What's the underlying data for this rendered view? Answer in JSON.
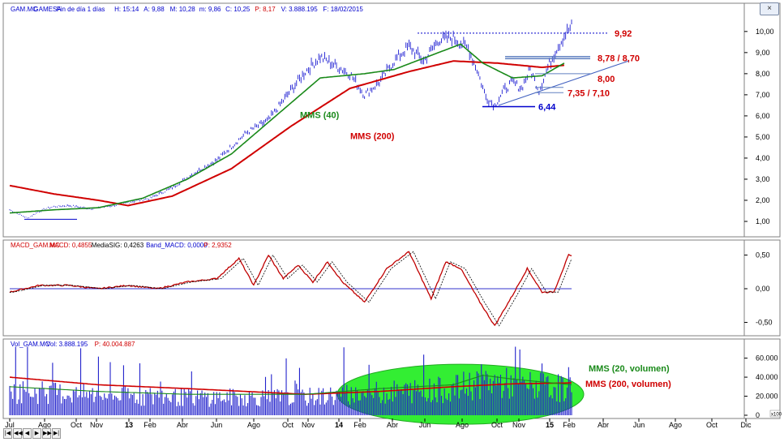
{
  "window": {
    "close_label": "×"
  },
  "navigation": [
    "|◀",
    "◀◀",
    "◀",
    "▶",
    "▶▶",
    "▶|"
  ],
  "panels": {
    "price": {
      "header": [
        "GAM.MC",
        "GAMESA",
        "Fin de día 1 días",
        "H: 15:14",
        "A: 9,88",
        "M: 10,28",
        "m: 9,86",
        "C: 10,25",
        "P: 8,17",
        "V: 3.888.195",
        "F: 18/02/2015"
      ],
      "header_colors": [
        "#0000cc",
        "#0000cc",
        "#0000cc",
        "#0000cc",
        "#0000cc",
        "#0000cc",
        "#0000cc",
        "#0000cc",
        "#d00000",
        "#0000cc",
        "#0000cc"
      ],
      "y_ticks": [
        "1,00",
        "2,00",
        "3,00",
        "4,00",
        "5,00",
        "6,00",
        "7,00",
        "8,00",
        "9,00",
        "10,00"
      ],
      "labels": {
        "mms40": "MMS (40)",
        "mms200": "MMS (200)"
      },
      "levels": [
        "9,92",
        "8,78 / 8,70",
        "8,00",
        "7,35 / 7,10",
        "6,44"
      ]
    },
    "macd": {
      "header": [
        "MACD_GAM.MC",
        "MACD: 0,4855",
        "MediaSIG: 0,4263",
        "Band_MACD: 0,0000",
        "P: 2,9352"
      ],
      "header_colors": [
        "#d00000",
        "#d00000",
        "#000000",
        "#0000cc",
        "#d00000"
      ],
      "y_ticks": [
        "-0,50",
        "0,00",
        "0,50"
      ]
    },
    "volume": {
      "header": [
        "Vol_GAM.MC",
        "Vol: 3.888.195",
        "P: 40.004.887"
      ],
      "header_colors": [
        "#0000cc",
        "#0000cc",
        "#d00000"
      ],
      "y_ticks": [
        "0",
        "20.000",
        "40.000",
        "60.000"
      ],
      "labels": {
        "mms20": "MMS (20, volumen)",
        "mms200": "MMS (200, volumen)"
      },
      "corner": "x100"
    }
  },
  "x_axis": {
    "labels": [
      "Jul",
      "Ago",
      "Oct",
      "Nov",
      "13",
      "Feb",
      "Abr",
      "Jun",
      "Ago",
      "Oct",
      "Nov",
      "14",
      "Feb",
      "Abr",
      "Jun",
      "Ago",
      "Oct",
      "Nov",
      "15",
      "Feb",
      "Abr",
      "Jun",
      "Ago",
      "Oct",
      "Dic"
    ]
  },
  "chart_data": {
    "type": "line",
    "series_name": "GAMESA (GAM.MC)",
    "x_range": [
      "2012-07",
      "2015-12"
    ],
    "price_keypoints": [
      [
        0,
        1.55
      ],
      [
        6,
        1.35
      ],
      [
        12,
        1.15
      ],
      [
        18,
        1.4
      ],
      [
        24,
        1.6
      ],
      [
        30,
        1.7
      ],
      [
        40,
        1.75
      ],
      [
        55,
        1.6
      ],
      [
        70,
        1.75
      ],
      [
        80,
        1.9
      ],
      [
        95,
        2.1
      ],
      [
        110,
        2.6
      ],
      [
        125,
        3.3
      ],
      [
        140,
        3.9
      ],
      [
        160,
        5.2
      ],
      [
        175,
        5.8
      ],
      [
        190,
        7.2
      ],
      [
        200,
        8.1
      ],
      [
        210,
        8.8
      ],
      [
        220,
        8.4
      ],
      [
        230,
        8.0
      ],
      [
        240,
        7.0
      ],
      [
        250,
        7.6
      ],
      [
        260,
        8.6
      ],
      [
        270,
        9.3
      ],
      [
        280,
        8.6
      ],
      [
        290,
        9.6
      ],
      [
        300,
        9.7
      ],
      [
        310,
        9.2
      ],
      [
        316,
        8.2
      ],
      [
        322,
        6.9
      ],
      [
        328,
        6.5
      ],
      [
        334,
        7.2
      ],
      [
        340,
        7.6
      ],
      [
        346,
        7.3
      ],
      [
        352,
        8.2
      ],
      [
        358,
        7.2
      ],
      [
        364,
        8.3
      ],
      [
        370,
        9.2
      ],
      [
        376,
        9.9
      ],
      [
        380,
        10.25
      ]
    ],
    "mms40_keypoints": [
      [
        0,
        1.4
      ],
      [
        30,
        1.55
      ],
      [
        60,
        1.65
      ],
      [
        90,
        2.1
      ],
      [
        120,
        3.0
      ],
      [
        150,
        4.2
      ],
      [
        180,
        6.0
      ],
      [
        210,
        7.8
      ],
      [
        240,
        8.0
      ],
      [
        260,
        8.2
      ],
      [
        290,
        9.0
      ],
      [
        305,
        9.4
      ],
      [
        320,
        8.5
      ],
      [
        340,
        7.8
      ],
      [
        360,
        7.9
      ],
      [
        375,
        8.5
      ]
    ],
    "mms200_keypoints": [
      [
        0,
        2.7
      ],
      [
        30,
        2.3
      ],
      [
        60,
        2.0
      ],
      [
        80,
        1.75
      ],
      [
        110,
        2.2
      ],
      [
        150,
        3.5
      ],
      [
        190,
        5.5
      ],
      [
        230,
        7.3
      ],
      [
        270,
        8.1
      ],
      [
        300,
        8.6
      ],
      [
        330,
        8.5
      ],
      [
        360,
        8.3
      ],
      [
        375,
        8.4
      ]
    ],
    "macd_keypoints": [
      [
        0,
        -0.05
      ],
      [
        20,
        0.05
      ],
      [
        40,
        0.05
      ],
      [
        60,
        0.0
      ],
      [
        80,
        0.05
      ],
      [
        100,
        0.0
      ],
      [
        120,
        0.1
      ],
      [
        140,
        0.15
      ],
      [
        155,
        0.45
      ],
      [
        165,
        0.05
      ],
      [
        175,
        0.5
      ],
      [
        185,
        0.15
      ],
      [
        195,
        0.35
      ],
      [
        205,
        0.1
      ],
      [
        215,
        0.4
      ],
      [
        225,
        0.1
      ],
      [
        240,
        -0.2
      ],
      [
        255,
        0.3
      ],
      [
        270,
        0.55
      ],
      [
        285,
        -0.15
      ],
      [
        295,
        0.4
      ],
      [
        305,
        0.3
      ],
      [
        318,
        -0.2
      ],
      [
        328,
        -0.55
      ],
      [
        340,
        -0.1
      ],
      [
        350,
        0.3
      ],
      [
        360,
        -0.05
      ],
      [
        368,
        -0.05
      ],
      [
        378,
        0.5
      ],
      [
        380,
        0.48
      ]
    ],
    "volume_mms20_keypoints": [
      [
        0,
        30
      ],
      [
        60,
        25
      ],
      [
        120,
        22
      ],
      [
        200,
        22
      ],
      [
        250,
        28
      ],
      [
        300,
        32
      ],
      [
        320,
        42
      ],
      [
        340,
        38
      ],
      [
        380,
        32
      ]
    ],
    "volume_mms200_keypoints": [
      [
        0,
        40
      ],
      [
        60,
        32
      ],
      [
        120,
        28
      ],
      [
        200,
        22
      ],
      [
        250,
        25
      ],
      [
        300,
        30
      ],
      [
        340,
        33
      ],
      [
        380,
        34
      ]
    ],
    "levels": [
      9.92,
      8.74,
      8.0,
      7.2,
      6.44
    ],
    "ylim": [
      0.5,
      10.8
    ],
    "macd_ylim": [
      -0.65,
      0.65
    ],
    "volume_ylim": [
      0,
      75
    ]
  }
}
